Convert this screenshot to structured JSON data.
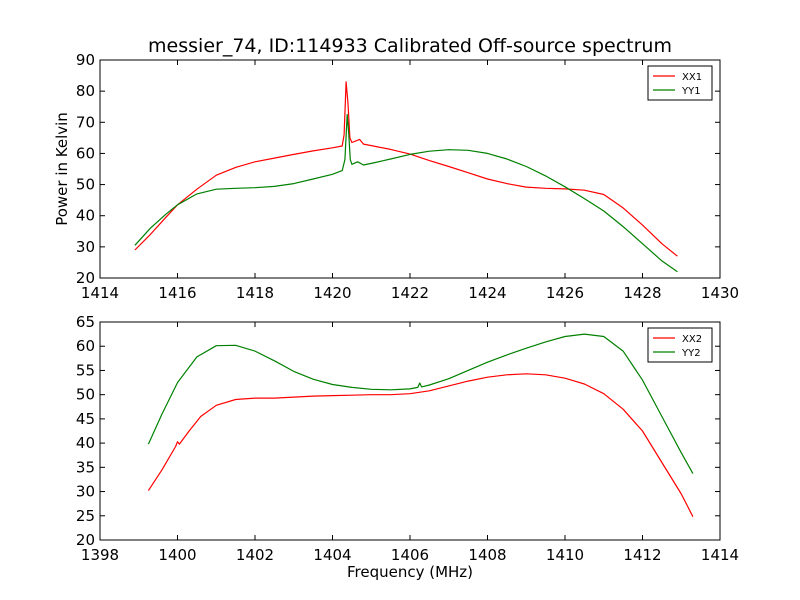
{
  "chart_data": [
    {
      "type": "line",
      "title": "messier_74, ID:114933 Calibrated Off-source spectrum",
      "xlabel": "",
      "ylabel": "Power in Kelvin",
      "xlim": [
        1414,
        1430
      ],
      "ylim": [
        20,
        90
      ],
      "xticks": [
        1414,
        1416,
        1418,
        1420,
        1422,
        1424,
        1426,
        1428,
        1430
      ],
      "yticks": [
        20,
        30,
        40,
        50,
        60,
        70,
        80,
        90
      ],
      "legend_position": "top-right",
      "grid": false,
      "series": [
        {
          "name": "XX1",
          "color": "#ff0000",
          "x": [
            1414.9,
            1415.3,
            1415.7,
            1416.0,
            1416.5,
            1417.0,
            1417.5,
            1418.0,
            1418.5,
            1419.0,
            1419.5,
            1420.0,
            1420.25,
            1420.3,
            1420.35,
            1420.4,
            1420.45,
            1420.5,
            1420.7,
            1420.8,
            1421.0,
            1421.5,
            1422.0,
            1422.5,
            1423.0,
            1423.5,
            1424.0,
            1424.5,
            1425.0,
            1425.5,
            1426.0,
            1426.5,
            1427.0,
            1427.5,
            1428.0,
            1428.5,
            1428.9
          ],
          "y": [
            29,
            34,
            39.5,
            43.5,
            48.5,
            53,
            55.5,
            57.3,
            58.5,
            59.7,
            60.8,
            61.8,
            62.4,
            66,
            83,
            76,
            65,
            63.5,
            64.5,
            63,
            62.5,
            61.3,
            59.8,
            57.7,
            55.8,
            53.8,
            51.8,
            50.3,
            49.2,
            48.8,
            48.6,
            48.2,
            46.8,
            42.5,
            37,
            31,
            27
          ]
        },
        {
          "name": "YY1",
          "color": "#008000",
          "x": [
            1414.9,
            1415.3,
            1415.7,
            1416.0,
            1416.5,
            1417.0,
            1417.5,
            1418.0,
            1418.5,
            1419.0,
            1419.5,
            1420.0,
            1420.25,
            1420.32,
            1420.38,
            1420.42,
            1420.46,
            1420.5,
            1420.65,
            1420.8,
            1421.0,
            1421.5,
            1422.0,
            1422.5,
            1423.0,
            1423.5,
            1424.0,
            1424.5,
            1425.0,
            1425.5,
            1426.0,
            1426.5,
            1427.0,
            1427.5,
            1428.0,
            1428.5,
            1428.9
          ],
          "y": [
            30.5,
            36,
            40.5,
            43.5,
            47,
            48.5,
            48.8,
            49,
            49.4,
            50.3,
            51.8,
            53.3,
            54.5,
            58,
            72.5,
            66,
            58,
            56.5,
            57.3,
            56.3,
            56.8,
            58.2,
            59.7,
            60.7,
            61.2,
            61,
            60,
            58.2,
            55.8,
            52.8,
            49.3,
            45.5,
            41.5,
            36.5,
            31,
            25.5,
            22
          ]
        }
      ]
    },
    {
      "type": "line",
      "title": "",
      "xlabel": "Frequency (MHz)",
      "ylabel": "",
      "xlim": [
        1398,
        1414
      ],
      "ylim": [
        20,
        65
      ],
      "xticks": [
        1398,
        1400,
        1402,
        1404,
        1406,
        1408,
        1410,
        1412,
        1414
      ],
      "yticks": [
        20,
        25,
        30,
        35,
        40,
        45,
        50,
        55,
        60,
        65
      ],
      "legend_position": "top-right",
      "grid": false,
      "series": [
        {
          "name": "XX2",
          "color": "#ff0000",
          "x": [
            1399.25,
            1399.6,
            1399.95,
            1400.0,
            1400.05,
            1400.3,
            1400.6,
            1401.0,
            1401.5,
            1402.0,
            1402.5,
            1403.0,
            1403.5,
            1404.0,
            1404.5,
            1405.0,
            1405.5,
            1406.0,
            1406.5,
            1407.0,
            1407.5,
            1408.0,
            1408.5,
            1409.0,
            1409.5,
            1410.0,
            1410.5,
            1411.0,
            1411.5,
            1412.0,
            1412.5,
            1413.0,
            1413.3
          ],
          "y": [
            30.2,
            34.5,
            39.3,
            40.3,
            39.8,
            42.5,
            45.5,
            47.8,
            49,
            49.3,
            49.3,
            49.5,
            49.7,
            49.8,
            49.9,
            50,
            50,
            50.2,
            50.8,
            51.8,
            52.8,
            53.6,
            54.1,
            54.3,
            54.1,
            53.4,
            52.2,
            50.2,
            47,
            42.5,
            36,
            29.5,
            24.8
          ]
        },
        {
          "name": "YY2",
          "color": "#008000",
          "x": [
            1399.25,
            1399.6,
            1400.0,
            1400.5,
            1401.0,
            1401.5,
            1402.0,
            1402.5,
            1403.0,
            1403.5,
            1404.0,
            1404.5,
            1405.0,
            1405.5,
            1406.0,
            1406.2,
            1406.25,
            1406.3,
            1406.5,
            1407.0,
            1407.5,
            1408.0,
            1408.5,
            1409.0,
            1409.5,
            1410.0,
            1410.5,
            1411.0,
            1411.5,
            1412.0,
            1412.5,
            1413.0,
            1413.3
          ],
          "y": [
            39.8,
            46,
            52.5,
            57.8,
            60.1,
            60.2,
            59,
            57,
            54.8,
            53.2,
            52.1,
            51.5,
            51.1,
            51,
            51.2,
            51.5,
            52.4,
            51.6,
            52,
            53.3,
            55,
            56.7,
            58.2,
            59.6,
            60.9,
            62,
            62.5,
            62,
            59,
            53,
            45.5,
            38,
            33.7
          ]
        }
      ]
    }
  ]
}
